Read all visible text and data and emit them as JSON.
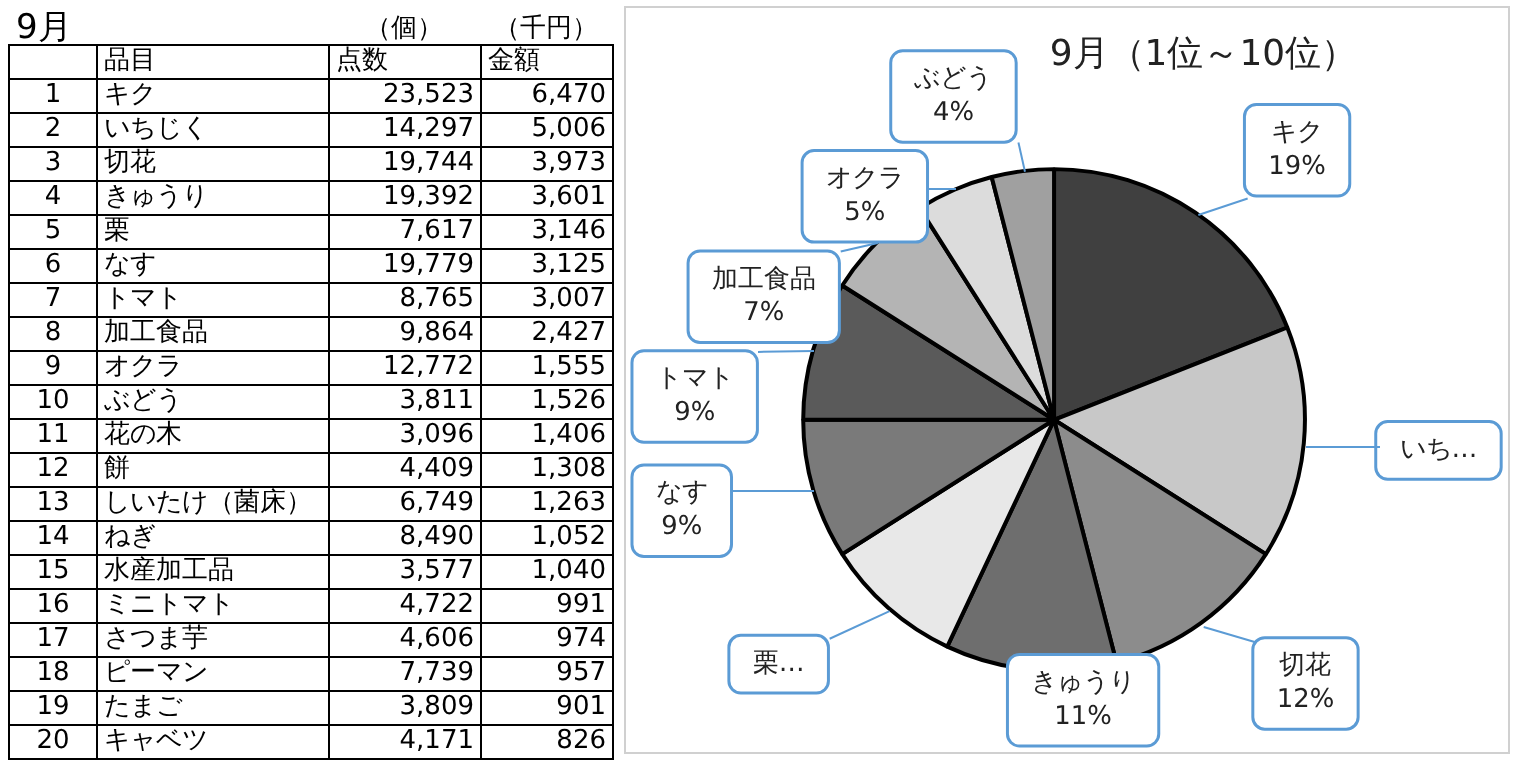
{
  "chart_data": [
    {
      "type": "heatmap",
      "title": "9月",
      "annotations": [
        "品目",
        "（個）",
        "（千円）"
      ],
      "categories": [
        "点数",
        "金額"
      ],
      "y2_categories": [
        "1",
        "2",
        "3",
        "4",
        "5",
        "6",
        "7",
        "8",
        "9",
        "10",
        "11",
        "12",
        "13",
        "14",
        "15",
        "16",
        "17",
        "18",
        "19",
        "20"
      ],
      "y_categories": [
        "キク",
        "いちじく",
        "切花",
        "きゅうり",
        "栗",
        "なす",
        "トマト",
        "加工食品",
        "オクラ",
        "ぶどう",
        "花の木",
        "餅",
        "しいたけ（菌床）",
        "ねぎ",
        "水産加工品",
        "ミニトマト",
        "さつま芋",
        "ピーマン",
        "たまご",
        "キャベツ"
      ],
      "cells": [
        [
          23523,
          6470
        ],
        [
          14297,
          5006
        ],
        [
          19744,
          3973
        ],
        [
          19392,
          3601
        ],
        [
          7617,
          3146
        ],
        [
          19779,
          3125
        ],
        [
          8765,
          3007
        ],
        [
          9864,
          2427
        ],
        [
          12772,
          1555
        ],
        [
          3811,
          1526
        ],
        [
          3096,
          1406
        ],
        [
          4409,
          1308
        ],
        [
          6749,
          1263
        ],
        [
          8490,
          1052
        ],
        [
          3577,
          1040
        ],
        [
          4722,
          991
        ],
        [
          4606,
          974
        ],
        [
          7739,
          957
        ],
        [
          3809,
          901
        ],
        [
          4171,
          826
        ]
      ],
      "cell_labels": [
        [
          "23,523",
          "6,470"
        ],
        [
          "14,297",
          "5,006"
        ],
        [
          "19,744",
          "3,973"
        ],
        [
          "19,392",
          "3,601"
        ],
        [
          "7,617",
          "3,146"
        ],
        [
          "19,779",
          "3,125"
        ],
        [
          "8,765",
          "3,007"
        ],
        [
          "9,864",
          "2,427"
        ],
        [
          "12,772",
          "1,555"
        ],
        [
          "3,811",
          "1,526"
        ],
        [
          "3,096",
          "1,406"
        ],
        [
          "4,409",
          "1,308"
        ],
        [
          "6,749",
          "1,263"
        ],
        [
          "8,490",
          "1,052"
        ],
        [
          "3,577",
          "1,040"
        ],
        [
          "4,722",
          "991"
        ],
        [
          "4,606",
          "974"
        ],
        [
          "7,739",
          "957"
        ],
        [
          "3,809",
          "901"
        ],
        [
          "4,171",
          "826"
        ]
      ]
    },
    {
      "type": "pie",
      "title": "9月（1位～10位）",
      "categories": [
        "キク",
        "いち…",
        "切花",
        "きゅうり",
        "栗…",
        "なす",
        "トマト",
        "加工食品",
        "オクラ",
        "ぶどう"
      ],
      "values": [
        19,
        15,
        12,
        11,
        9,
        9,
        9,
        7,
        5,
        4
      ],
      "value_labels": [
        "19%",
        null,
        "12%",
        "11%",
        null,
        "9%",
        "9%",
        "7%",
        "5%",
        "4%"
      ],
      "colors": [
        "#404040",
        "#c8c8c8",
        "#8c8c8c",
        "#6e6e6e",
        "#e8e8e8",
        "#7a7a7a",
        "#5a5a5a",
        "#b4b4b4",
        "#dcdcdc",
        "#a0a0a0"
      ]
    }
  ]
}
